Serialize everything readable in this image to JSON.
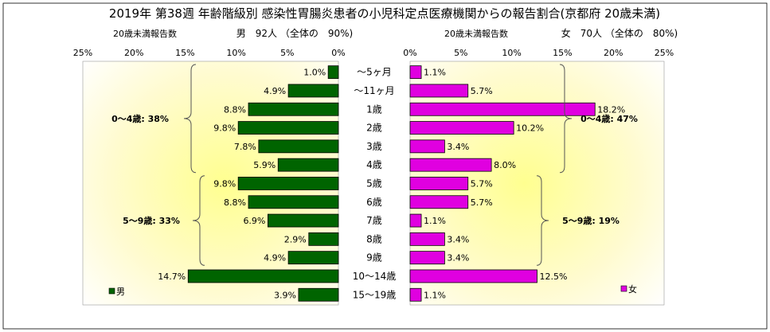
{
  "chart_data": {
    "type": "bar",
    "title": "2019年 第38週 年齢階級別 感染性胃腸炎患者の小児科定点医療機関からの報告割合(京都府 20歳未満)",
    "categories": [
      "～5ヶ月",
      "～11ヶ月",
      "1歳",
      "2歳",
      "3歳",
      "4歳",
      "5歳",
      "6歳",
      "7歳",
      "8歳",
      "9歳",
      "10～14歳",
      "15～19歳"
    ],
    "xlim": [
      0,
      25
    ],
    "xticks": [
      "0%",
      "5%",
      "10%",
      "15%",
      "20%",
      "25%"
    ],
    "male": {
      "axis_label": "20歳未満報告数",
      "header": "男　92人 （全体の　90%)",
      "legend": "男",
      "color": "#006400",
      "values": [
        1.0,
        4.9,
        8.8,
        9.8,
        7.8,
        5.9,
        9.8,
        8.8,
        6.9,
        2.9,
        4.9,
        14.7,
        3.9
      ],
      "value_labels": [
        "1.0%",
        "4.9%",
        "8.8%",
        "9.8%",
        "7.8%",
        "5.9%",
        "9.8%",
        "8.8%",
        "6.9%",
        "2.9%",
        "4.9%",
        "14.7%",
        "3.9%"
      ],
      "groups": [
        {
          "label": "0～4歳: 38%",
          "from": 0,
          "to": 5
        },
        {
          "label": "5～9歳: 33%",
          "from": 6,
          "to": 10
        }
      ]
    },
    "female": {
      "axis_label": "20歳未満報告数",
      "header": "女　70人 （全体の　80%)",
      "legend": "女",
      "color": "#e000e0",
      "values": [
        1.1,
        5.7,
        18.2,
        10.2,
        3.4,
        8.0,
        5.7,
        5.7,
        1.1,
        3.4,
        3.4,
        12.5,
        1.1
      ],
      "value_labels": [
        "1.1%",
        "5.7%",
        "18.2%",
        "10.2%",
        "3.4%",
        "8.0%",
        "5.7%",
        "5.7%",
        "1.1%",
        "3.4%",
        "3.4%",
        "12.5%",
        "1.1%"
      ],
      "groups": [
        {
          "label": "0～4歳: 47%",
          "from": 0,
          "to": 5
        },
        {
          "label": "5～9歳: 19%",
          "from": 6,
          "to": 10
        }
      ]
    },
    "grid": false
  }
}
